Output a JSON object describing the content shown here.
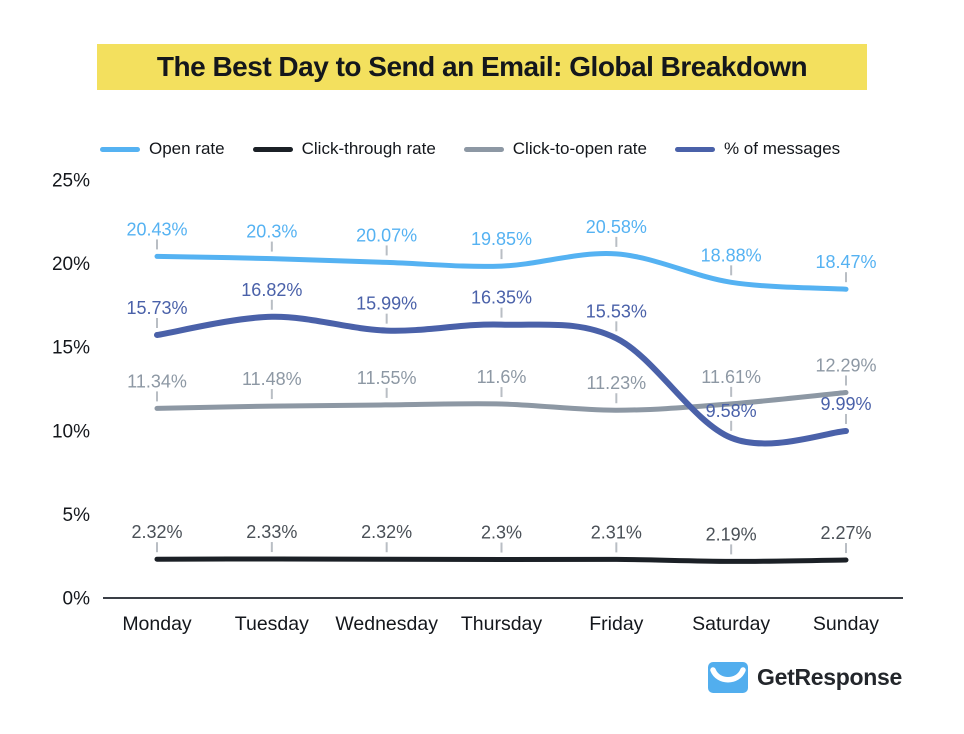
{
  "title": {
    "text": "The Best Day to Send an Email: Global Breakdown",
    "highlight_color": "#F3E05E",
    "text_color": "#14171C"
  },
  "chart_data": {
    "type": "line",
    "title": "The Best Day to Send an Email: Global Breakdown",
    "categories": [
      "Monday",
      "Tuesday",
      "Wednesday",
      "Thursday",
      "Friday",
      "Saturday",
      "Sunday"
    ],
    "series": [
      {
        "name": "Open rate",
        "color": "#55B2F2",
        "label_color": "#55B2F2",
        "width": 5,
        "values": [
          20.43,
          20.3,
          20.07,
          19.85,
          20.58,
          18.88,
          18.47
        ],
        "labels": [
          "20.43%",
          "20.3%",
          "20.07%",
          "19.85%",
          "20.58%",
          "18.88%",
          "18.47%"
        ]
      },
      {
        "name": "Click-through rate",
        "color": "#1B2026",
        "label_color": "#4A5057",
        "width": 5,
        "values": [
          2.32,
          2.33,
          2.32,
          2.3,
          2.31,
          2.19,
          2.27
        ],
        "labels": [
          "2.32%",
          "2.33%",
          "2.32%",
          "2.3%",
          "2.31%",
          "2.19%",
          "2.27%"
        ]
      },
      {
        "name": "Click-to-open rate",
        "color": "#8D98A4",
        "label_color": "#8D98A4",
        "width": 5,
        "values": [
          11.34,
          11.48,
          11.55,
          11.6,
          11.23,
          11.61,
          12.29
        ],
        "labels": [
          "11.34%",
          "11.48%",
          "11.55%",
          "11.6%",
          "11.23%",
          "11.61%",
          "12.29%"
        ]
      },
      {
        "name": "% of messages",
        "color": "#4A61A9",
        "label_color": "#4A61A9",
        "width": 6,
        "values": [
          15.73,
          16.82,
          15.99,
          16.35,
          15.53,
          9.58,
          9.99
        ],
        "labels": [
          "15.73%",
          "16.82%",
          "15.99%",
          "16.35%",
          "15.53%",
          "9.58%",
          "9.99%"
        ]
      }
    ],
    "ylim": [
      0,
      25
    ],
    "y_tick_values": [
      0,
      5,
      10,
      15,
      20,
      25
    ],
    "y_ticks": [
      "0%",
      "5%",
      "10%",
      "15%",
      "20%",
      "25%"
    ],
    "xlabel": "",
    "ylabel": "",
    "grid": false,
    "legend_position": "top",
    "axis_color": "#3A3F46",
    "axis_text_color": "#14171C",
    "tick_mark_color": "#B9BEC4"
  },
  "footer": {
    "brand": "GetResponse",
    "logo_color": "#52AEEE",
    "brand_text_color": "#23262B"
  }
}
